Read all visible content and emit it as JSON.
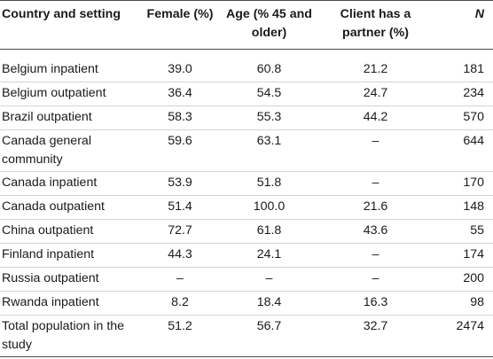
{
  "table": {
    "headers": [
      "Country and setting",
      "Female (%)",
      "Age (% 45 and older)",
      "Client has a partner (%)",
      "N"
    ],
    "rows": [
      [
        "Belgium inpatient",
        "39.0",
        "60.8",
        "21.2",
        "181"
      ],
      [
        "Belgium outpatient",
        "36.4",
        "54.5",
        "24.7",
        "234"
      ],
      [
        "Brazil outpatient",
        "58.3",
        "55.3",
        "44.2",
        "570"
      ],
      [
        "Canada general community",
        "59.6",
        "63.1",
        "–",
        "644"
      ],
      [
        "Canada inpatient",
        "53.9",
        "51.8",
        "–",
        "170"
      ],
      [
        "Canada outpatient",
        "51.4",
        "100.0",
        "21.6",
        "148"
      ],
      [
        "China outpatient",
        "72.7",
        "61.8",
        "43.6",
        "55"
      ],
      [
        "Finland inpatient",
        "44.3",
        "24.1",
        "–",
        "174"
      ],
      [
        "Russia outpatient",
        "–",
        "–",
        "–",
        "200"
      ],
      [
        "Rwanda inpatient",
        "8.2",
        "18.4",
        "16.3",
        "98"
      ],
      [
        "Total population in the study",
        "51.2",
        "56.7",
        "32.7",
        "2474"
      ]
    ]
  }
}
